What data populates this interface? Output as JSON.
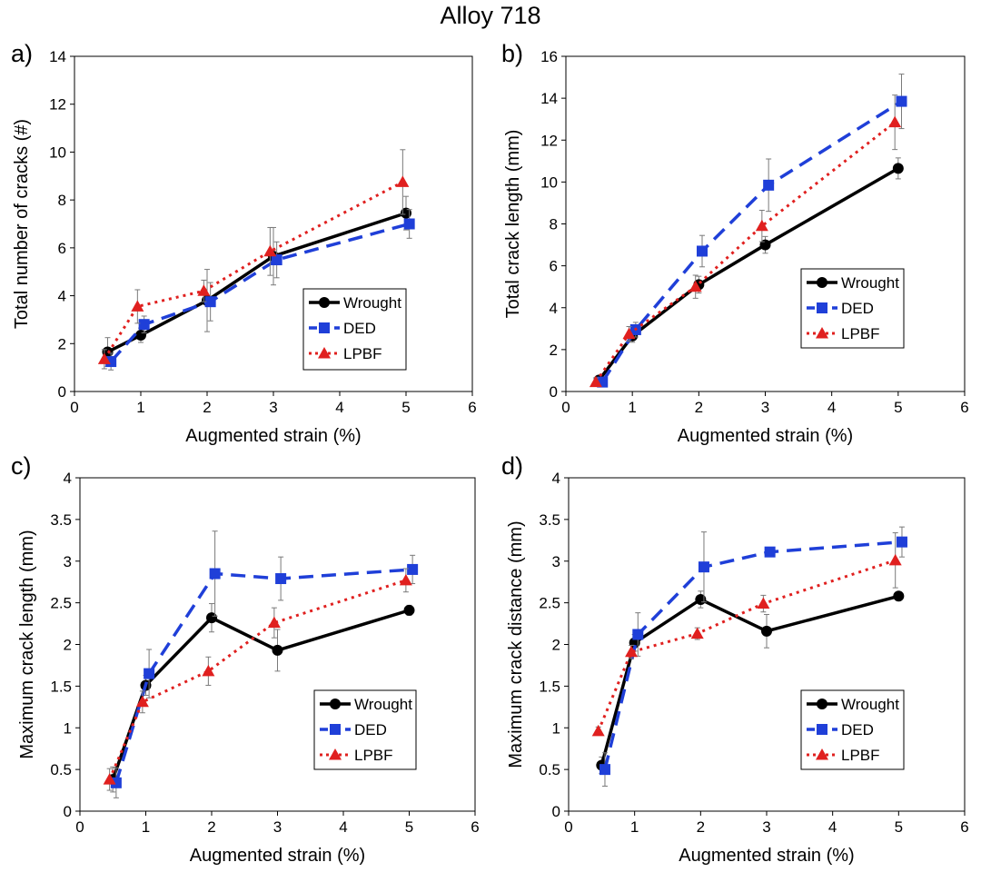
{
  "figure": {
    "title": "Alloy 718",
    "colors": {
      "Wrought": "#000000",
      "DED": "#1f3fd8",
      "LPBF": "#e0201f"
    },
    "legend": [
      "Wrought",
      "DED",
      "LPBF"
    ]
  },
  "chart_data": [
    {
      "panel": "a)",
      "type": "line",
      "xlabel": "Augmented strain (%)",
      "ylabel": "Total number of cracks (#)",
      "xlim": [
        0,
        6
      ],
      "ylim": [
        0,
        14
      ],
      "xticks": [
        "0",
        "1",
        "2",
        "3",
        "4",
        "5",
        "6"
      ],
      "yticks": [
        "0",
        "2",
        "4",
        "6",
        "8",
        "10",
        "12",
        "14"
      ],
      "legend_position": "bottom-right",
      "series": [
        {
          "name": "Wrought",
          "x": [
            0.5,
            1,
            2,
            3,
            5
          ],
          "y": [
            1.65,
            2.35,
            3.8,
            5.65,
            7.45
          ],
          "err": [
            0.6,
            0.3,
            1.3,
            1.2,
            0.7
          ]
        },
        {
          "name": "DED",
          "x": [
            0.55,
            1.05,
            2.05,
            3.05,
            5.05
          ],
          "y": [
            1.25,
            2.8,
            3.75,
            5.5,
            7.0
          ],
          "err": [
            0.35,
            0.35,
            0.8,
            0.75,
            0.6
          ]
        },
        {
          "name": "LPBF",
          "x": [
            0.45,
            0.95,
            1.95,
            2.95,
            4.95
          ],
          "y": [
            1.35,
            3.55,
            4.2,
            5.85,
            8.75
          ],
          "err": [
            0.4,
            0.7,
            0.45,
            1.0,
            1.35
          ]
        }
      ]
    },
    {
      "panel": "b)",
      "type": "line",
      "xlabel": "Augmented strain (%)",
      "ylabel": "Total crack length (mm)",
      "xlim": [
        0,
        6
      ],
      "ylim": [
        0,
        16
      ],
      "xticks": [
        "0",
        "1",
        "2",
        "3",
        "4",
        "5",
        "6"
      ],
      "yticks": [
        "0",
        "2",
        "4",
        "6",
        "8",
        "10",
        "12",
        "14",
        "16"
      ],
      "legend_position": "bottom-right",
      "series": [
        {
          "name": "Wrought",
          "x": [
            0.5,
            1,
            2,
            3,
            5
          ],
          "y": [
            0.55,
            2.65,
            5.1,
            7.0,
            10.65
          ],
          "err": [
            0.2,
            0.3,
            0.4,
            0.4,
            0.5
          ]
        },
        {
          "name": "DED",
          "x": [
            0.55,
            1.05,
            2.05,
            3.05,
            5.05
          ],
          "y": [
            0.45,
            2.95,
            6.7,
            9.85,
            13.85
          ],
          "err": [
            0.2,
            0.35,
            0.75,
            1.25,
            1.3
          ]
        },
        {
          "name": "LPBF",
          "x": [
            0.45,
            0.95,
            1.95,
            2.95,
            4.95
          ],
          "y": [
            0.45,
            2.75,
            5.0,
            7.9,
            12.85
          ],
          "err": [
            0.2,
            0.35,
            0.55,
            0.75,
            1.3
          ]
        }
      ]
    },
    {
      "panel": "c)",
      "type": "line",
      "xlabel": "Augmented strain (%)",
      "ylabel": "Maximum crack length (mm)",
      "xlim": [
        0,
        6
      ],
      "ylim": [
        0,
        4
      ],
      "xticks": [
        "0",
        "1",
        "2",
        "3",
        "4",
        "5",
        "6"
      ],
      "yticks": [
        "0",
        "0.5",
        "1",
        "1.5",
        "2",
        "2.5",
        "3",
        "3.5",
        "4"
      ],
      "legend_position": "bottom-right",
      "series": [
        {
          "name": "Wrought",
          "x": [
            0.5,
            1,
            2,
            3,
            5
          ],
          "y": [
            0.38,
            1.51,
            2.32,
            1.93,
            2.41
          ],
          "err": [
            0.15,
            0.12,
            0.17,
            0.25,
            0.06
          ]
        },
        {
          "name": "DED",
          "x": [
            0.55,
            1.05,
            2.05,
            3.05,
            5.05
          ],
          "y": [
            0.34,
            1.65,
            2.85,
            2.79,
            2.9
          ],
          "err": [
            0.18,
            0.29,
            0.51,
            0.26,
            0.17
          ]
        },
        {
          "name": "LPBF",
          "x": [
            0.45,
            0.95,
            1.95,
            2.95,
            4.95
          ],
          "y": [
            0.38,
            1.31,
            1.68,
            2.26,
            2.77
          ],
          "err": [
            0.13,
            0.13,
            0.17,
            0.18,
            0.14
          ]
        }
      ]
    },
    {
      "panel": "d)",
      "type": "line",
      "xlabel": "Augmented strain (%)",
      "ylabel": "Maximum crack distance (mm)",
      "xlim": [
        0,
        6
      ],
      "ylim": [
        0,
        4
      ],
      "xticks": [
        "0",
        "1",
        "2",
        "3",
        "4",
        "5",
        "6"
      ],
      "yticks": [
        "0",
        "0.5",
        "1",
        "1.5",
        "2",
        "2.5",
        "3",
        "3.5",
        "4"
      ],
      "legend_position": "bottom-right",
      "series": [
        {
          "name": "Wrought",
          "x": [
            0.5,
            1,
            2,
            3,
            5
          ],
          "y": [
            0.55,
            2.02,
            2.54,
            2.16,
            2.58
          ],
          "err": [
            0.1,
            0.1,
            0.1,
            0.2,
            0.05
          ]
        },
        {
          "name": "DED",
          "x": [
            0.55,
            1.05,
            2.05,
            3.05,
            5.05
          ],
          "y": [
            0.5,
            2.12,
            2.93,
            3.11,
            3.23
          ],
          "err": [
            0.2,
            0.26,
            0.42,
            0.05,
            0.18
          ]
        },
        {
          "name": "LPBF",
          "x": [
            0.45,
            0.95,
            1.95,
            2.95,
            4.95
          ],
          "y": [
            0.96,
            1.91,
            2.13,
            2.49,
            3.01
          ],
          "err": [
            0.05,
            0.08,
            0.07,
            0.1,
            0.33
          ]
        }
      ]
    }
  ]
}
